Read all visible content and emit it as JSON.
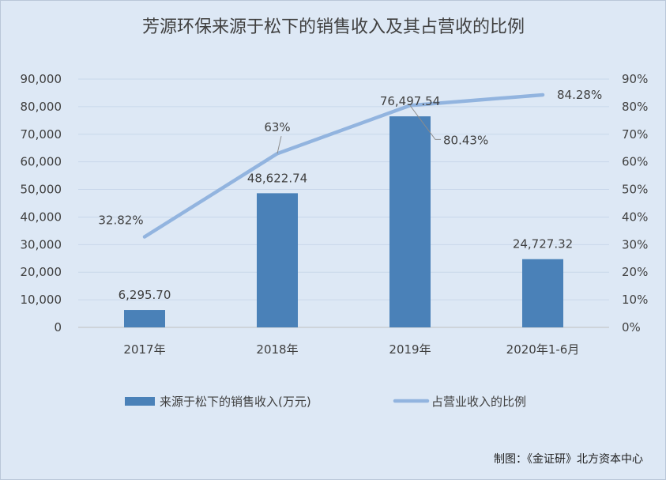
{
  "chart_data": {
    "type": "bar",
    "title": "芳源环保来源于松下的销售收入及其占营收的比例",
    "categories": [
      "2017年",
      "2018年",
      "2019年",
      "2020年1-6月"
    ],
    "series": [
      {
        "name": "来源于松下的销售收入(万元)",
        "type": "bar",
        "axis": "left",
        "values": [
          6295.7,
          48622.74,
          76497.54,
          24727.32
        ],
        "labels": [
          "6,295.70",
          "48,622.74",
          "76,497.54",
          "24,727.32"
        ]
      },
      {
        "name": "占营业收入的比例",
        "type": "line",
        "axis": "right",
        "values": [
          32.82,
          63,
          80.43,
          84.28
        ],
        "labels": [
          "32.82%",
          "63%",
          "80.43%",
          "84.28%"
        ]
      }
    ],
    "y_left": {
      "range": [
        0,
        90000
      ],
      "ticks": [
        0,
        10000,
        20000,
        30000,
        40000,
        50000,
        60000,
        70000,
        80000,
        90000
      ],
      "tick_labels": [
        "0",
        "10,000",
        "20,000",
        "30,000",
        "40,000",
        "50,000",
        "60,000",
        "70,000",
        "80,000",
        "90,000"
      ]
    },
    "y_right": {
      "range": [
        0,
        90
      ],
      "ticks": [
        0,
        10,
        20,
        30,
        40,
        50,
        60,
        70,
        80,
        90
      ],
      "tick_labels": [
        "0%",
        "10%",
        "20%",
        "30%",
        "40%",
        "50%",
        "60%",
        "70%",
        "80%",
        "90%"
      ]
    },
    "grid": true,
    "legend_position": "bottom",
    "colors": {
      "bar": "#4a81b8",
      "line": "#92b4df",
      "grid": "#c8d7ea",
      "background": "#dde8f5"
    }
  },
  "source_note": "制图：《金证研》北方资本中心"
}
